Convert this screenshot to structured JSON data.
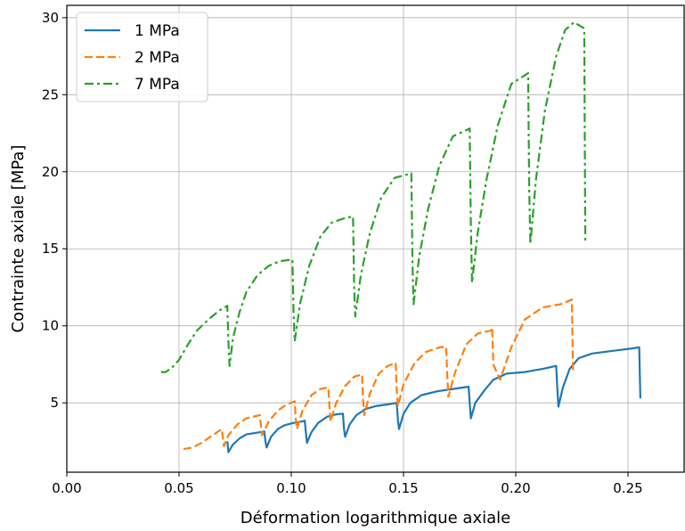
{
  "chart_data": {
    "type": "line",
    "xlabel": "Déformation logarithmique axiale",
    "ylabel": "Contrainte axiale [MPa]",
    "xlim": [
      0.0,
      0.275
    ],
    "ylim": [
      0.5,
      30.8
    ],
    "xticks": [
      0.0,
      0.05,
      0.1,
      0.15,
      0.2,
      0.25
    ],
    "xtick_labels": [
      "0.00",
      "0.05",
      "0.10",
      "0.15",
      "0.20",
      "0.25"
    ],
    "yticks": [
      5,
      10,
      15,
      20,
      25,
      30
    ],
    "ytick_labels": [
      "5",
      "10",
      "15",
      "20",
      "25",
      "30"
    ],
    "grid": true,
    "legend_position": "top-left",
    "series": [
      {
        "name": "1 MPa",
        "color": "#1f77b4",
        "dash": "solid",
        "x": [
          0.0715,
          0.072,
          0.074,
          0.077,
          0.08,
          0.084,
          0.088,
          0.0885,
          0.089,
          0.091,
          0.094,
          0.097,
          0.101,
          0.105,
          0.106,
          0.107,
          0.109,
          0.112,
          0.116,
          0.12,
          0.123,
          0.1235,
          0.124,
          0.126,
          0.129,
          0.133,
          0.138,
          0.143,
          0.147,
          0.1475,
          0.148,
          0.15,
          0.153,
          0.158,
          0.165,
          0.172,
          0.179,
          0.1795,
          0.18,
          0.182,
          0.186,
          0.19,
          0.196,
          0.204,
          0.212,
          0.218,
          0.2185,
          0.219,
          0.221,
          0.224,
          0.228,
          0.234,
          0.242,
          0.25,
          0.255,
          0.2555
        ],
        "y": [
          2.5,
          1.8,
          2.3,
          2.7,
          2.95,
          3.05,
          3.15,
          2.5,
          2.1,
          2.8,
          3.3,
          3.55,
          3.7,
          3.8,
          3.85,
          2.4,
          3.1,
          3.7,
          4.1,
          4.25,
          4.3,
          3.3,
          2.8,
          3.6,
          4.2,
          4.6,
          4.8,
          4.9,
          5.0,
          3.9,
          3.3,
          4.3,
          5.0,
          5.5,
          5.75,
          5.9,
          6.05,
          5.0,
          4.0,
          5.0,
          5.8,
          6.5,
          6.9,
          7.0,
          7.2,
          7.4,
          6.0,
          4.75,
          6.0,
          7.2,
          7.9,
          8.2,
          8.35,
          8.5,
          8.6,
          5.3
        ]
      },
      {
        "name": "2 MPa",
        "color": "#ff7f0e",
        "dash": "dashed",
        "x": [
          0.052,
          0.056,
          0.06,
          0.064,
          0.069,
          0.0695,
          0.07,
          0.072,
          0.076,
          0.08,
          0.086,
          0.0865,
          0.087,
          0.09,
          0.094,
          0.098,
          0.1015,
          0.102,
          0.1025,
          0.105,
          0.109,
          0.113,
          0.1165,
          0.117,
          0.1175,
          0.12,
          0.124,
          0.128,
          0.1315,
          0.132,
          0.1325,
          0.135,
          0.139,
          0.143,
          0.1465,
          0.147,
          0.1475,
          0.15,
          0.155,
          0.16,
          0.166,
          0.169,
          0.1695,
          0.17,
          0.173,
          0.178,
          0.183,
          0.189,
          0.1895,
          0.19,
          0.193,
          0.198,
          0.204,
          0.212,
          0.22,
          0.225,
          0.2255
        ],
        "y": [
          2.0,
          2.1,
          2.4,
          2.8,
          3.3,
          2.8,
          2.2,
          2.9,
          3.6,
          4.0,
          4.2,
          3.5,
          2.9,
          3.8,
          4.5,
          4.9,
          5.1,
          4.0,
          3.3,
          4.5,
          5.5,
          5.9,
          6.0,
          4.8,
          3.8,
          5.0,
          6.1,
          6.7,
          6.85,
          5.2,
          4.2,
          5.6,
          6.9,
          7.4,
          7.6,
          5.8,
          4.8,
          6.2,
          7.6,
          8.3,
          8.6,
          8.65,
          6.8,
          5.4,
          7.0,
          8.8,
          9.5,
          9.7,
          9.9,
          7.5,
          6.5,
          8.6,
          10.4,
          11.2,
          11.4,
          11.7,
          6.9
        ]
      },
      {
        "name": "7 MPa",
        "color": "#2ca02c",
        "dash": "dashdot",
        "x": [
          0.042,
          0.044,
          0.047,
          0.05,
          0.054,
          0.058,
          0.063,
          0.068,
          0.0715,
          0.072,
          0.0725,
          0.074,
          0.077,
          0.08,
          0.085,
          0.09,
          0.095,
          0.1005,
          0.101,
          0.1015,
          0.104,
          0.108,
          0.113,
          0.118,
          0.124,
          0.1275,
          0.128,
          0.1285,
          0.131,
          0.135,
          0.14,
          0.146,
          0.1535,
          0.154,
          0.1545,
          0.157,
          0.161,
          0.166,
          0.172,
          0.1795,
          0.18,
          0.1805,
          0.183,
          0.187,
          0.192,
          0.198,
          0.2055,
          0.206,
          0.2065,
          0.209,
          0.213,
          0.218,
          0.222,
          0.226,
          0.2305,
          0.231
        ],
        "y": [
          7.0,
          7.0,
          7.3,
          7.8,
          8.8,
          9.7,
          10.4,
          11.0,
          11.3,
          9.0,
          7.4,
          9.2,
          10.9,
          12.2,
          13.3,
          13.9,
          14.2,
          14.3,
          11.0,
          9.0,
          11.5,
          13.9,
          15.8,
          16.7,
          17.0,
          17.1,
          12.5,
          10.6,
          13.3,
          16.0,
          18.3,
          19.6,
          19.9,
          14.0,
          11.4,
          14.5,
          17.6,
          20.4,
          22.3,
          22.8,
          16.5,
          12.8,
          16.0,
          19.5,
          23.0,
          25.7,
          26.4,
          19.0,
          15.3,
          19.5,
          24.0,
          27.5,
          29.2,
          29.7,
          29.3,
          15.4
        ]
      }
    ]
  }
}
